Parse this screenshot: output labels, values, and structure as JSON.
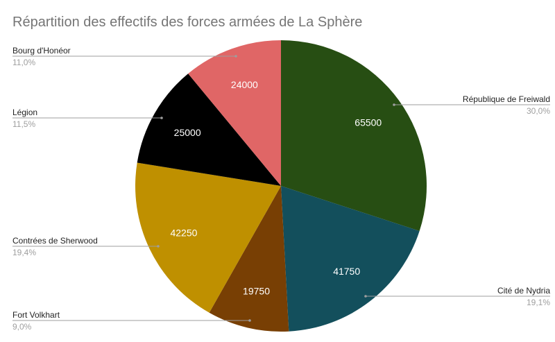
{
  "chart_data": {
    "type": "pie",
    "title": "Répartition des effectifs des forces armées de La Sphère",
    "slices": [
      {
        "label": "République de Freiwald",
        "value": 65500,
        "percent": "30,0%",
        "color": "#274e13"
      },
      {
        "label": "Cité de Nydria",
        "value": 41750,
        "percent": "19,1%",
        "color": "#134f5c"
      },
      {
        "label": "Fort Volkhart",
        "value": 19750,
        "percent": "9,0%",
        "color": "#783f04"
      },
      {
        "label": "Contrées de Sherwood",
        "value": 42250,
        "percent": "19,4%",
        "color": "#bf9000"
      },
      {
        "label": "Légion",
        "value": 25000,
        "percent": "11,5%",
        "color": "#000000"
      },
      {
        "label": "Bourg d'Honéor",
        "value": 24000,
        "percent": "11,0%",
        "color": "#e06666"
      }
    ],
    "start_angle": "top",
    "direction": "clockwise",
    "legend": "none"
  }
}
